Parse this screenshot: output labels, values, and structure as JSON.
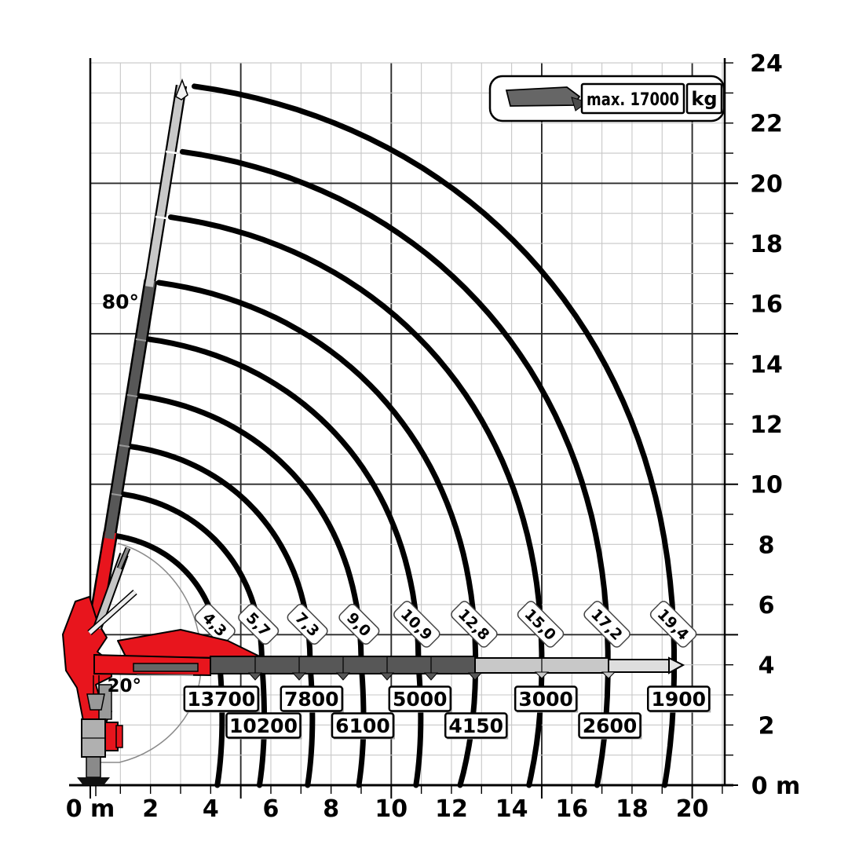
{
  "legend": {
    "max_label": "max. 17000",
    "unit_label": "kg"
  },
  "annotations": {
    "boom_angle_top": "80°",
    "boom_angle_bottom": "20°"
  },
  "chart_data": {
    "type": "line",
    "title": "Crane lifting capacity diagram",
    "x_axis": {
      "range_m": [
        0,
        21
      ],
      "tick_step_m": 1,
      "major_step_m": 5,
      "label_step_m": 2,
      "labels": [
        "0 m",
        "2",
        "4",
        "6",
        "8",
        "10",
        "12",
        "14",
        "16",
        "18",
        "20"
      ]
    },
    "y_axis": {
      "range_m": [
        0,
        24
      ],
      "tick_step_m": 1,
      "major_step_m": 5,
      "label_step_m": 2,
      "labels": [
        "0 m",
        "2",
        "4",
        "6",
        "8",
        "10",
        "12",
        "14",
        "16",
        "18",
        "20",
        "22",
        "24"
      ]
    },
    "max_capacity_kg": 17000,
    "boom_max_angle_deg": 80,
    "boom_min_angle_deg": 20,
    "curves": [
      {
        "load_kg": 13700,
        "load_label": "13700",
        "outreach_m": 4.3,
        "outreach_label": "4,3",
        "row": 1
      },
      {
        "load_kg": 10200,
        "load_label": "10200",
        "outreach_m": 5.7,
        "outreach_label": "5,7",
        "row": 2
      },
      {
        "load_kg": 7800,
        "load_label": "7800",
        "outreach_m": 7.3,
        "outreach_label": "7,3",
        "row": 1
      },
      {
        "load_kg": 6100,
        "load_label": "6100",
        "outreach_m": 9.0,
        "outreach_label": "9,0",
        "row": 2
      },
      {
        "load_kg": 5000,
        "load_label": "5000",
        "outreach_m": 10.9,
        "outreach_label": "10,9",
        "row": 1
      },
      {
        "load_kg": 4150,
        "load_label": "4150",
        "outreach_m": 12.8,
        "outreach_label": "12,8",
        "row": 2
      },
      {
        "load_kg": 3000,
        "load_label": "3000",
        "outreach_m": 15.0,
        "outreach_label": "15,0",
        "row": 1
      },
      {
        "load_kg": 2600,
        "load_label": "2600",
        "outreach_m": 17.2,
        "outreach_label": "17,2",
        "row": 2
      },
      {
        "load_kg": 1900,
        "load_label": "1900",
        "outreach_m": 19.4,
        "outreach_label": "19,4",
        "row": 1
      }
    ],
    "colors": {
      "curve": "#000000",
      "grid_minor": "#c7c7c7",
      "grid_major": "#2b2b2b",
      "crane_red": "#e8151d",
      "boom_dark": "#575757",
      "boom_light": "#c8c8c8",
      "boom_lighter": "#dedede"
    }
  }
}
